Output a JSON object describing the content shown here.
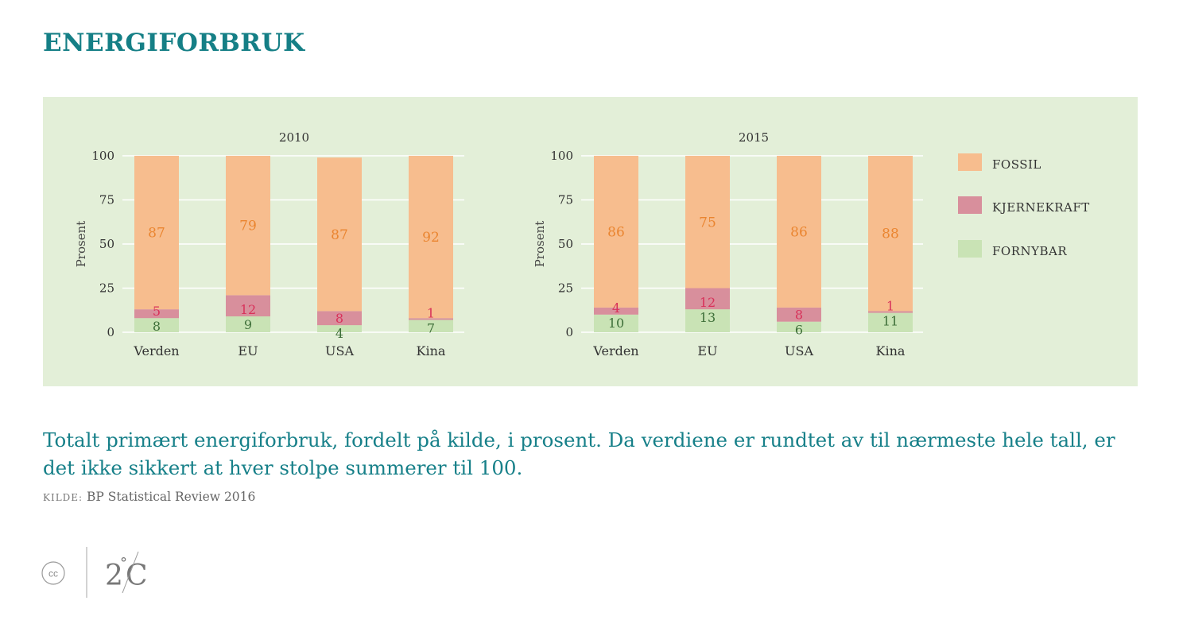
{
  "page": {
    "title": "ENERGIFORBRUK",
    "caption": "Totalt primært energiforbruk, fordelt på kilde, i prosent. Da verdiene er rundtet av til nærmeste hele tall, er det ikke sikkert at hver stolpe summerer til 100.",
    "source_label": "KILDE:",
    "source_text": "BP Statistical Review 2016",
    "footer": {
      "cc_label": "cc",
      "logo_digit": "2",
      "logo_degree": "°",
      "logo_unit": "C"
    }
  },
  "colors": {
    "fossil": "#f7bd8e",
    "nuclear": "#d88f9c",
    "renewable": "#c9e3b5",
    "fossil_label": "#ea8530",
    "nuclear_label": "#d8325a",
    "renewable_label": "#3d6e38",
    "panel": "#e3efd8",
    "accent": "#157f86"
  },
  "legend": [
    {
      "key": "fossil",
      "label": "FOSSIL"
    },
    {
      "key": "nuclear",
      "label": "KJERNEKRAFT"
    },
    {
      "key": "renewable",
      "label": "FORNYBAR"
    }
  ],
  "chart_data": [
    {
      "type": "bar",
      "stacked": true,
      "title": "2010",
      "ylabel": "Prosent",
      "ylim": [
        0,
        100
      ],
      "yticks": [
        0,
        25,
        50,
        75,
        100
      ],
      "categories": [
        "Verden",
        "EU",
        "USA",
        "Kina"
      ],
      "series": [
        {
          "name": "FORNYBAR",
          "key": "renewable",
          "values": [
            8,
            9,
            4,
            7
          ]
        },
        {
          "name": "KJERNEKRAFT",
          "key": "nuclear",
          "values": [
            5,
            12,
            8,
            1
          ]
        },
        {
          "name": "FOSSIL",
          "key": "fossil",
          "values": [
            87,
            79,
            87,
            92
          ]
        }
      ]
    },
    {
      "type": "bar",
      "stacked": true,
      "title": "2015",
      "ylabel": "Prosent",
      "ylim": [
        0,
        100
      ],
      "yticks": [
        0,
        25,
        50,
        75,
        100
      ],
      "categories": [
        "Verden",
        "EU",
        "USA",
        "Kina"
      ],
      "series": [
        {
          "name": "FORNYBAR",
          "key": "renewable",
          "values": [
            10,
            13,
            6,
            11
          ]
        },
        {
          "name": "KJERNEKRAFT",
          "key": "nuclear",
          "values": [
            4,
            12,
            8,
            1
          ]
        },
        {
          "name": "FOSSIL",
          "key": "fossil",
          "values": [
            86,
            75,
            86,
            88
          ]
        }
      ]
    }
  ]
}
